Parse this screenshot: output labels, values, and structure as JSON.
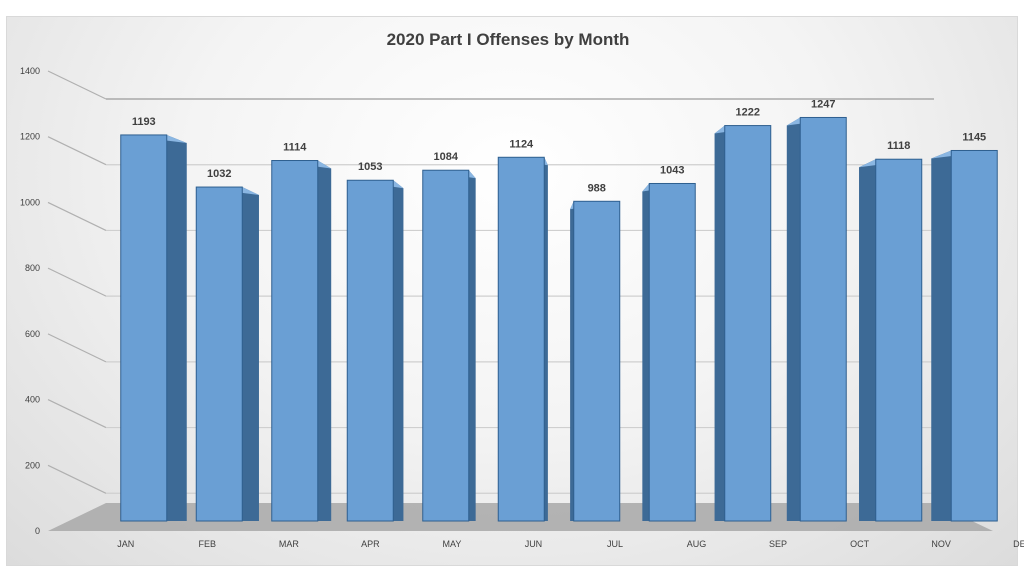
{
  "chart_data": {
    "type": "bar",
    "title": "2020 Part I Offenses by Month",
    "categories": [
      "JAN",
      "FEB",
      "MAR",
      "APR",
      "MAY",
      "JUN",
      "JUL",
      "AUG",
      "SEP",
      "OCT",
      "NOV",
      "DEC"
    ],
    "values": [
      1193,
      1032,
      1114,
      1053,
      1084,
      1124,
      988,
      1043,
      1222,
      1247,
      1118,
      1145
    ],
    "yticks": [
      0,
      200,
      400,
      600,
      800,
      1000,
      1200,
      1400
    ],
    "ylim": [
      0,
      1400
    ],
    "grid": true,
    "legend": "none",
    "three_d": true,
    "colors": {
      "bar_front": "#6a9fd4",
      "bar_side": "#3d6a96",
      "bar_top": "#8ab6e2",
      "bar_edge": "#2e5f8f"
    }
  }
}
